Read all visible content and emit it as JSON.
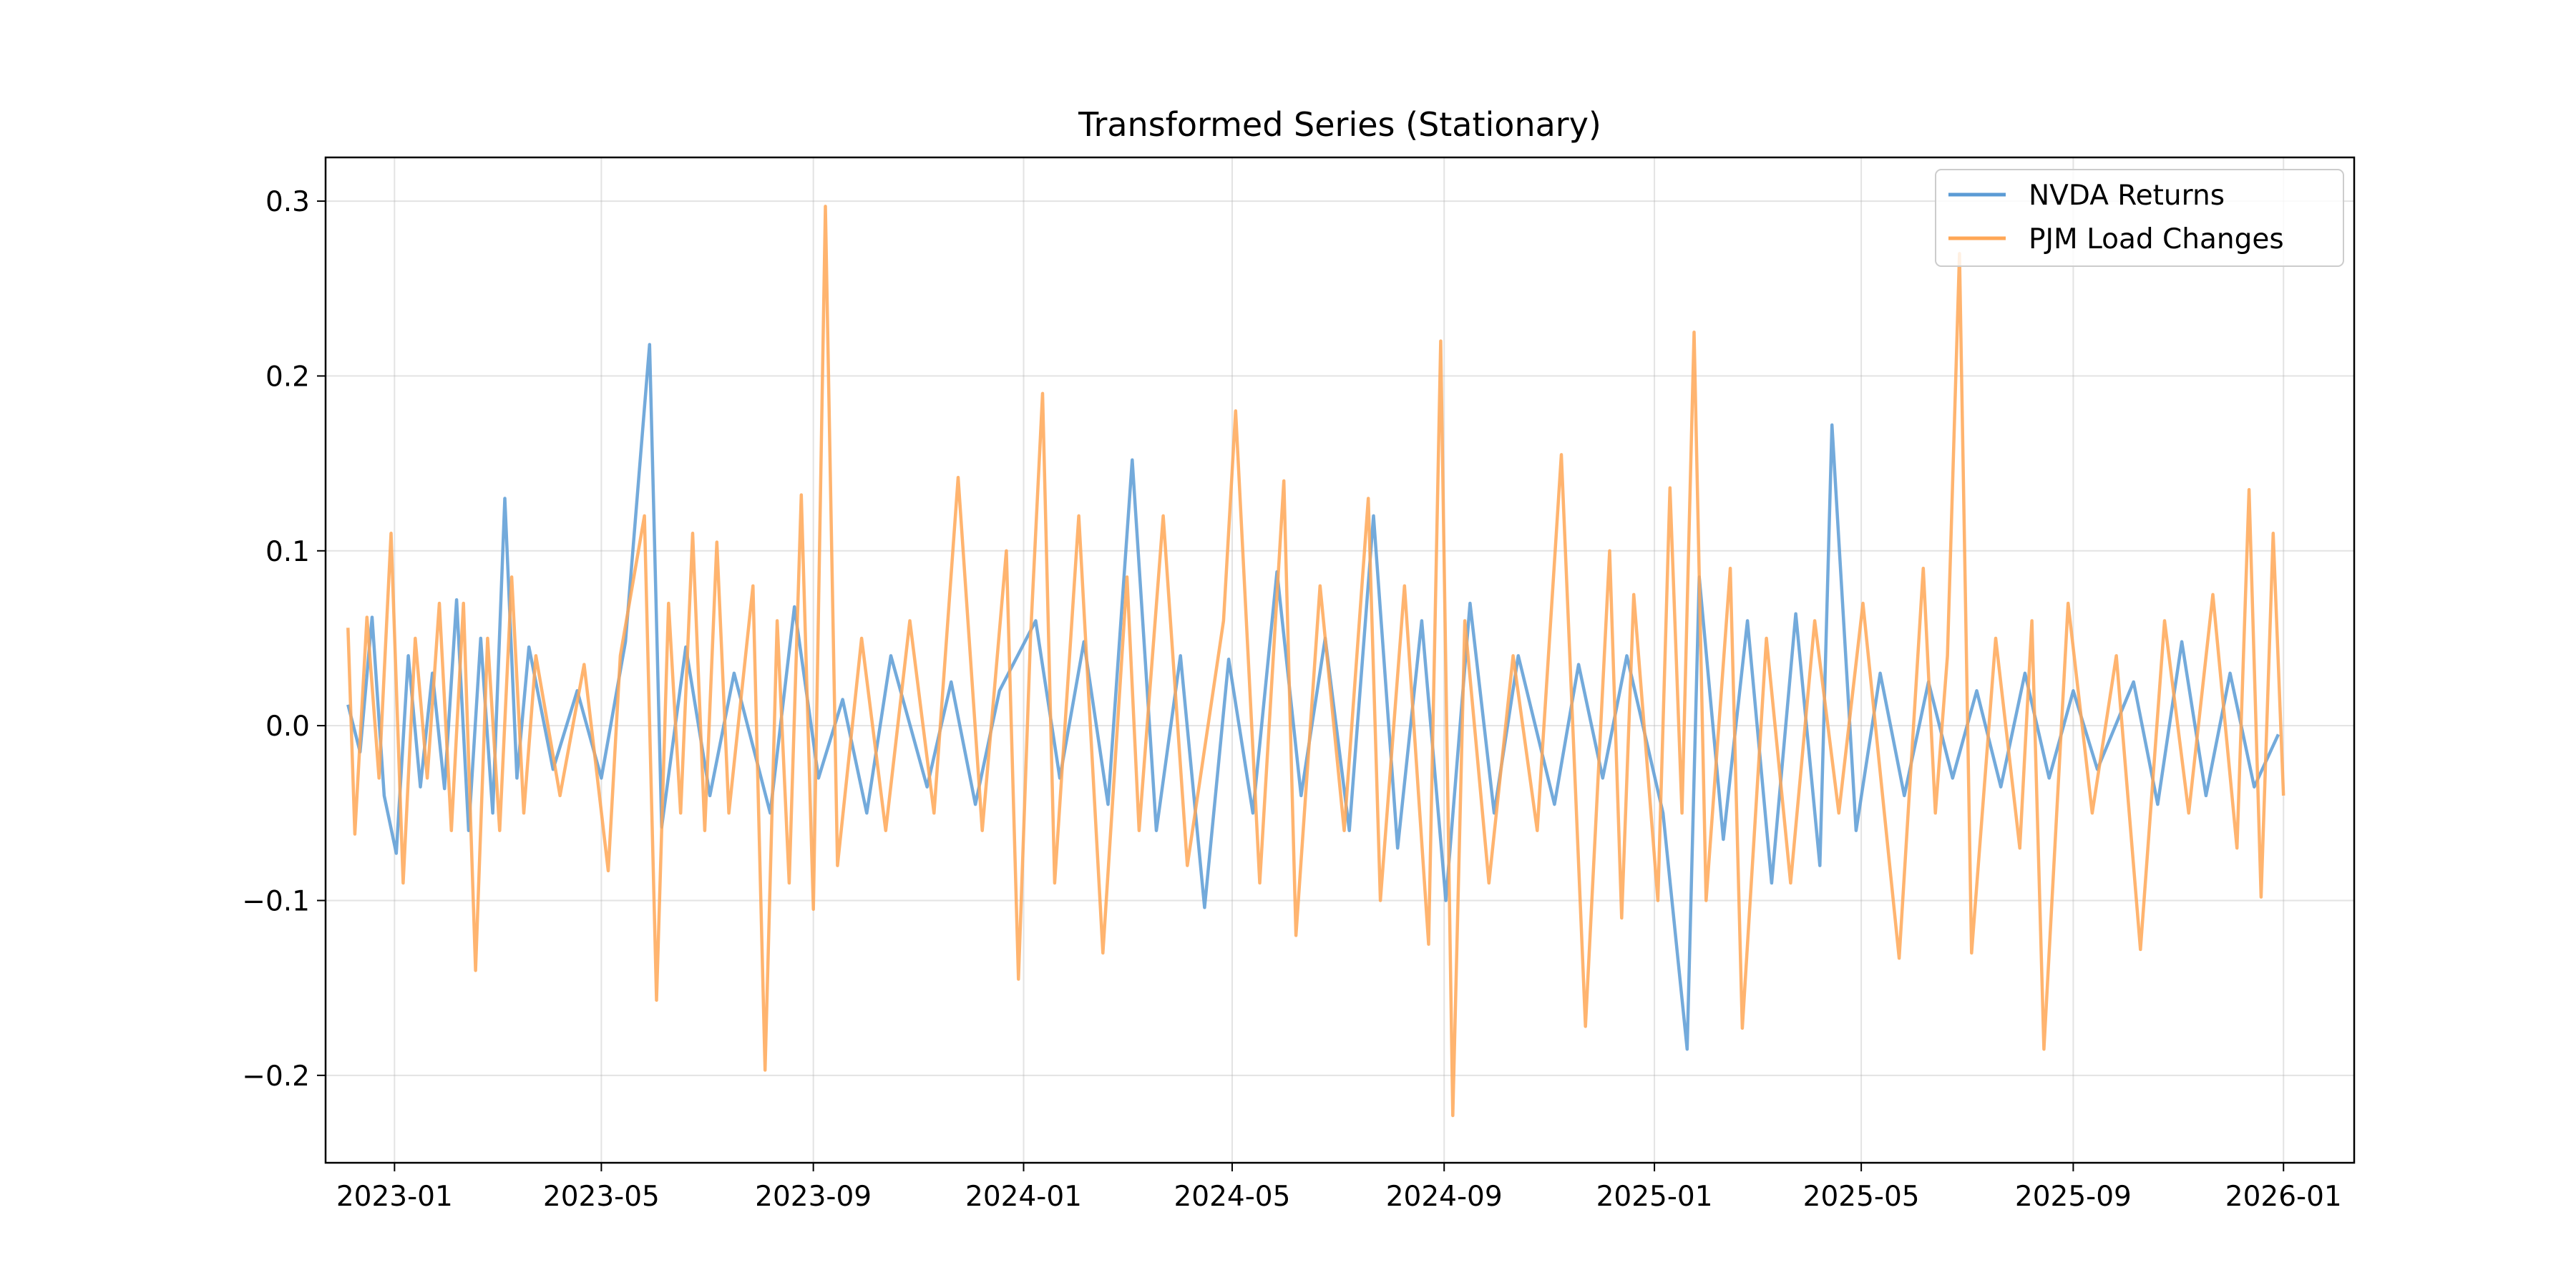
{
  "chart_data": {
    "type": "line",
    "title": "Transformed Series (Stationary)",
    "xlabel": "",
    "ylabel": "",
    "grid": true,
    "legend_position": "top-right",
    "x_range": [
      "2022-11-22",
      "2026-02-11"
    ],
    "ylim": [
      -0.25,
      0.325
    ],
    "x_ticks": [
      "2023-01",
      "2023-05",
      "2023-09",
      "2024-01",
      "2024-05",
      "2024-09",
      "2025-01",
      "2025-05",
      "2025-09",
      "2026-01"
    ],
    "x_tick_labels": [
      "2023-01",
      "2023-05",
      "2023-09",
      "2024-01",
      "2024-05",
      "2024-09",
      "2025-01",
      "2025-05",
      "2025-09",
      "2026-01"
    ],
    "y_ticks": [
      -0.2,
      -0.1,
      0.0,
      0.1,
      0.2,
      0.3
    ],
    "y_tick_labels": [
      "−0.2",
      "−0.1",
      "0.0",
      "0.1",
      "0.2",
      "0.3"
    ],
    "series": [
      {
        "name": "NVDA Returns",
        "color": "#5b9bd5",
        "x": [
          "2022-12-05",
          "2022-12-12",
          "2022-12-19",
          "2022-12-26",
          "2023-01-02",
          "2023-01-09",
          "2023-01-16",
          "2023-01-23",
          "2023-01-30",
          "2023-02-06",
          "2023-02-13",
          "2023-02-20",
          "2023-02-27",
          "2023-03-06",
          "2023-03-13",
          "2023-03-20",
          "2023-04-03",
          "2023-04-17",
          "2023-05-01",
          "2023-05-15",
          "2023-05-29",
          "2023-06-05",
          "2023-06-19",
          "2023-07-03",
          "2023-07-17",
          "2023-08-07",
          "2023-08-21",
          "2023-09-04",
          "2023-09-18",
          "2023-10-02",
          "2023-10-16",
          "2023-11-06",
          "2023-11-20",
          "2023-12-04",
          "2023-12-18",
          "2024-01-08",
          "2024-01-22",
          "2024-02-05",
          "2024-02-19",
          "2024-03-04",
          "2024-03-18",
          "2024-04-01",
          "2024-04-15",
          "2024-04-29",
          "2024-05-13",
          "2024-05-27",
          "2024-06-10",
          "2024-06-24",
          "2024-07-08",
          "2024-07-22",
          "2024-08-05",
          "2024-08-19",
          "2024-09-02",
          "2024-09-16",
          "2024-09-30",
          "2024-10-14",
          "2024-11-04",
          "2024-11-18",
          "2024-12-02",
          "2024-12-16",
          "2025-01-06",
          "2025-01-20",
          "2025-01-27",
          "2025-02-10",
          "2025-02-24",
          "2025-03-10",
          "2025-03-24",
          "2025-04-07",
          "2025-04-14",
          "2025-04-28",
          "2025-05-12",
          "2025-05-26",
          "2025-06-09",
          "2025-06-23",
          "2025-07-07",
          "2025-07-21",
          "2025-08-04",
          "2025-08-18",
          "2025-09-01",
          "2025-09-15",
          "2025-10-06",
          "2025-10-20",
          "2025-11-03",
          "2025-11-17",
          "2025-12-01",
          "2025-12-15",
          "2025-12-29"
        ],
        "values": [
          0.012,
          -0.015,
          0.062,
          -0.04,
          -0.073,
          0.04,
          -0.035,
          0.03,
          -0.036,
          0.072,
          -0.06,
          0.05,
          -0.05,
          0.13,
          -0.03,
          0.045,
          -0.025,
          0.02,
          -0.03,
          0.048,
          0.218,
          -0.058,
          0.045,
          -0.04,
          0.03,
          -0.05,
          0.068,
          -0.03,
          0.015,
          -0.05,
          0.04,
          -0.035,
          0.025,
          -0.045,
          0.02,
          0.06,
          -0.03,
          0.048,
          -0.045,
          0.152,
          -0.06,
          0.04,
          -0.104,
          0.038,
          -0.05,
          0.088,
          -0.04,
          0.05,
          -0.06,
          0.12,
          -0.07,
          0.06,
          -0.1,
          0.07,
          -0.05,
          0.04,
          -0.045,
          0.035,
          -0.03,
          0.04,
          -0.05,
          -0.185,
          0.085,
          -0.065,
          0.06,
          -0.09,
          0.064,
          -0.08,
          0.172,
          -0.06,
          0.03,
          -0.04,
          0.025,
          -0.03,
          0.02,
          -0.035,
          0.03,
          -0.03,
          0.02,
          -0.025,
          0.025,
          -0.045,
          0.048,
          -0.04,
          0.03,
          -0.035,
          -0.005
        ]
      },
      {
        "name": "PJM Load Changes",
        "color": "#ffa756",
        "x": [
          "2022-12-05",
          "2022-12-09",
          "2022-12-16",
          "2022-12-23",
          "2022-12-30",
          "2023-01-06",
          "2023-01-13",
          "2023-01-20",
          "2023-01-27",
          "2023-02-03",
          "2023-02-10",
          "2023-02-17",
          "2023-02-24",
          "2023-03-03",
          "2023-03-10",
          "2023-03-17",
          "2023-03-24",
          "2023-04-07",
          "2023-04-21",
          "2023-05-05",
          "2023-05-12",
          "2023-05-26",
          "2023-06-02",
          "2023-06-09",
          "2023-06-16",
          "2023-06-23",
          "2023-06-30",
          "2023-07-07",
          "2023-07-14",
          "2023-07-28",
          "2023-08-04",
          "2023-08-11",
          "2023-08-18",
          "2023-08-25",
          "2023-09-01",
          "2023-09-08",
          "2023-09-15",
          "2023-09-29",
          "2023-10-13",
          "2023-10-27",
          "2023-11-10",
          "2023-11-24",
          "2023-12-08",
          "2023-12-22",
          "2023-12-29",
          "2024-01-05",
          "2024-01-12",
          "2024-01-19",
          "2024-02-02",
          "2024-02-16",
          "2024-03-01",
          "2024-03-08",
          "2024-03-22",
          "2024-04-05",
          "2024-04-26",
          "2024-05-03",
          "2024-05-17",
          "2024-05-31",
          "2024-06-07",
          "2024-06-21",
          "2024-07-05",
          "2024-07-19",
          "2024-07-26",
          "2024-08-09",
          "2024-08-23",
          "2024-08-30",
          "2024-09-06",
          "2024-09-13",
          "2024-09-27",
          "2024-10-11",
          "2024-10-25",
          "2024-11-08",
          "2024-11-22",
          "2024-12-06",
          "2024-12-13",
          "2024-12-20",
          "2025-01-03",
          "2025-01-10",
          "2025-01-17",
          "2025-01-24",
          "2025-01-31",
          "2025-02-14",
          "2025-02-21",
          "2025-03-07",
          "2025-03-21",
          "2025-04-04",
          "2025-04-18",
          "2025-05-02",
          "2025-05-23",
          "2025-06-06",
          "2025-06-13",
          "2025-06-20",
          "2025-06-27",
          "2025-07-04",
          "2025-07-18",
          "2025-08-01",
          "2025-08-08",
          "2025-08-15",
          "2025-08-29",
          "2025-09-12",
          "2025-09-26",
          "2025-10-10",
          "2025-10-24",
          "2025-11-07",
          "2025-11-21",
          "2025-12-05",
          "2025-12-12",
          "2025-12-19",
          "2025-12-26",
          "2026-01-01"
        ],
        "values": [
          0.056,
          -0.062,
          0.062,
          -0.03,
          0.11,
          -0.09,
          0.05,
          -0.03,
          0.07,
          -0.06,
          0.07,
          -0.14,
          0.05,
          -0.06,
          0.085,
          -0.05,
          0.04,
          -0.04,
          0.035,
          -0.083,
          0.04,
          0.12,
          -0.157,
          0.07,
          -0.05,
          0.11,
          -0.06,
          0.105,
          -0.05,
          0.08,
          -0.197,
          0.06,
          -0.09,
          0.132,
          -0.105,
          0.297,
          -0.08,
          0.05,
          -0.06,
          0.06,
          -0.05,
          0.142,
          -0.06,
          0.1,
          -0.145,
          0.05,
          0.19,
          -0.09,
          0.12,
          -0.13,
          0.085,
          -0.06,
          0.12,
          -0.08,
          0.06,
          0.18,
          -0.09,
          0.14,
          -0.12,
          0.08,
          -0.06,
          0.13,
          -0.1,
          0.08,
          -0.125,
          0.22,
          -0.223,
          0.06,
          -0.09,
          0.04,
          -0.06,
          0.155,
          -0.172,
          0.1,
          -0.11,
          0.075,
          -0.1,
          0.136,
          -0.05,
          0.225,
          -0.1,
          0.09,
          -0.173,
          0.05,
          -0.09,
          0.06,
          -0.05,
          0.07,
          -0.133,
          0.09,
          -0.05,
          0.04,
          0.27,
          -0.13,
          0.05,
          -0.07,
          0.06,
          -0.185,
          0.07,
          -0.05,
          0.04,
          -0.128,
          0.06,
          -0.05,
          0.075,
          -0.07,
          0.135,
          -0.098,
          0.11,
          -0.04
        ]
      }
    ]
  }
}
